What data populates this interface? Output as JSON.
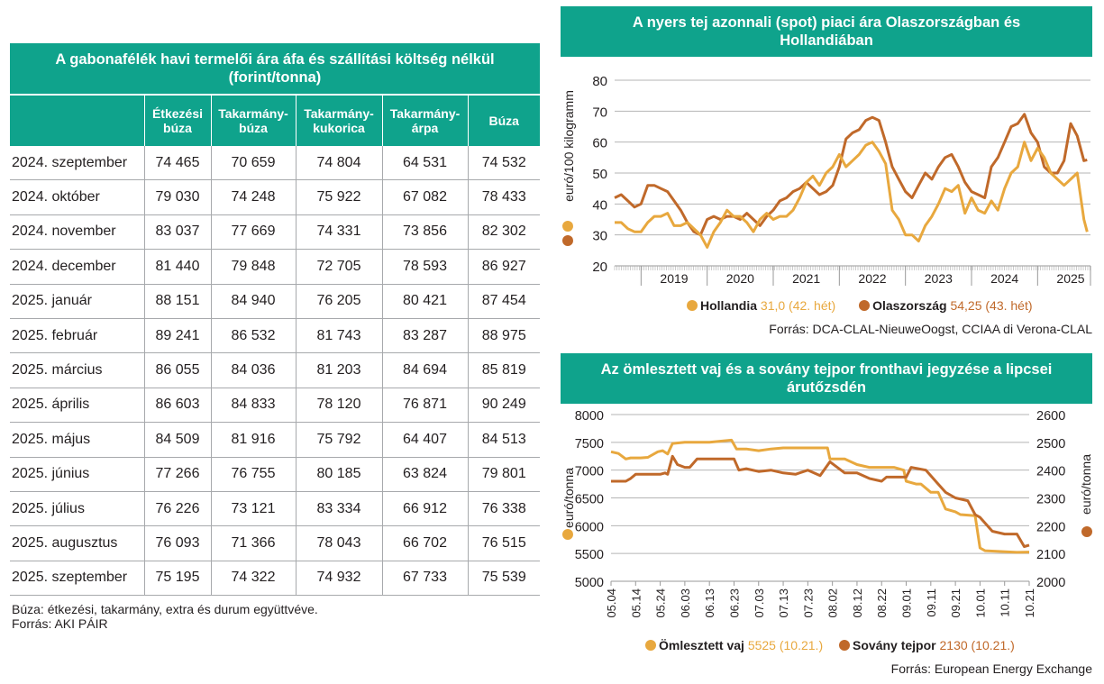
{
  "table": {
    "title": "A gabonafélék havi termelői ára áfa és szállítási költség nélkül (forint/tonna)",
    "headers": [
      "",
      "Étkezési búza",
      "Takarmány-búza",
      "Takarmány-kukorica",
      "Takarmány-árpa",
      "Búza"
    ],
    "rows": [
      [
        "2024. szeptember",
        "74 465",
        "70 659",
        "74 804",
        "64 531",
        "74 532"
      ],
      [
        "2024. október",
        "79 030",
        "74 248",
        "75 922",
        "67 082",
        "78 433"
      ],
      [
        "2024. november",
        "83 037",
        "77 669",
        "74 331",
        "73 856",
        "82 302"
      ],
      [
        "2024. december",
        "81 440",
        "79 848",
        "72 705",
        "78 593",
        "86 927"
      ],
      [
        "2025. január",
        "88 151",
        "84 940",
        "76 205",
        "80 421",
        "87 454"
      ],
      [
        "2025. február",
        "89 241",
        "86 532",
        "81 743",
        "83 287",
        "88 975"
      ],
      [
        "2025. március",
        "86 055",
        "84 036",
        "81 203",
        "84 694",
        "85 819"
      ],
      [
        "2025. április",
        "86 603",
        "84 833",
        "78 120",
        "76 871",
        "90 249"
      ],
      [
        "2025. május",
        "84 509",
        "81 916",
        "75 792",
        "64 407",
        "84 513"
      ],
      [
        "2025. június",
        "77 266",
        "76 755",
        "80 185",
        "63 824",
        "79 801"
      ],
      [
        "2025. július",
        "76 226",
        "73 121",
        "83 334",
        "66 912",
        "76 338"
      ],
      [
        "2025. augusztus",
        "76 093",
        "71 366",
        "78 043",
        "66 702",
        "76 515"
      ],
      [
        "2025. szeptember",
        "75 195",
        "74 322",
        "74 932",
        "67 733",
        "75 539"
      ]
    ],
    "note": "Búza: étkezési, takarmány, extra és durum együttvéve.",
    "source": "Forrás: AKI PÁIR"
  },
  "colors": {
    "teal": "#0fa38c",
    "light_orange": "#e8a83e",
    "dark_orange": "#c0692a",
    "grid": "#b5b5b5"
  },
  "chart_data": [
    {
      "type": "line",
      "title": "A nyers tej azonnali (spot) piaci ára Olaszországban és Hollandiában",
      "ylabel": "euró/100 kilogramm",
      "ylim": [
        20,
        80
      ],
      "yticks": [
        20,
        30,
        40,
        50,
        60,
        70,
        80
      ],
      "xlim": [
        2018.6,
        2025.8
      ],
      "xtick_labels": [
        "2019",
        "2020",
        "2021",
        "2022",
        "2023",
        "2024",
        "2025"
      ],
      "grid": true,
      "legend": "bottom",
      "series": [
        {
          "name": "Hollandia",
          "value_label": "31,0 (42. hét)",
          "color": "#e8a83e",
          "x": [
            2018.6,
            2018.7,
            2018.8,
            2018.9,
            2019.0,
            2019.1,
            2019.2,
            2019.3,
            2019.4,
            2019.5,
            2019.6,
            2019.7,
            2019.8,
            2019.9,
            2020.0,
            2020.1,
            2020.2,
            2020.3,
            2020.4,
            2020.5,
            2020.6,
            2020.7,
            2020.8,
            2020.9,
            2021.0,
            2021.1,
            2021.2,
            2021.3,
            2021.4,
            2021.5,
            2021.6,
            2021.7,
            2021.8,
            2021.9,
            2022.0,
            2022.1,
            2022.2,
            2022.3,
            2022.4,
            2022.5,
            2022.6,
            2022.7,
            2022.8,
            2022.9,
            2023.0,
            2023.1,
            2023.2,
            2023.3,
            2023.4,
            2023.5,
            2023.6,
            2023.7,
            2023.8,
            2023.9,
            2024.0,
            2024.1,
            2024.2,
            2024.3,
            2024.4,
            2024.5,
            2024.6,
            2024.7,
            2024.8,
            2024.9,
            2025.0,
            2025.1,
            2025.2,
            2025.3,
            2025.4,
            2025.5,
            2025.6,
            2025.7,
            2025.75
          ],
          "values": [
            34,
            34,
            32,
            31,
            31,
            34,
            36,
            36,
            37,
            33,
            33,
            34,
            32,
            30,
            26,
            31,
            34,
            38,
            36,
            36,
            34,
            31,
            35,
            37,
            35,
            36,
            36,
            38,
            42,
            47,
            49,
            46,
            50,
            52,
            56,
            52,
            54,
            56,
            59,
            60,
            57,
            53,
            38,
            35,
            30,
            30,
            28,
            33,
            36,
            40,
            45,
            44,
            46,
            37,
            42,
            38,
            37,
            41,
            38,
            45,
            50,
            52,
            60,
            54,
            58,
            55,
            50,
            48,
            46,
            48,
            50,
            35,
            31
          ]
        },
        {
          "name": "Olaszország",
          "value_label": "54,25 (43. hét)",
          "color": "#c0692a",
          "x": [
            2018.6,
            2018.7,
            2018.8,
            2018.9,
            2019.0,
            2019.1,
            2019.2,
            2019.3,
            2019.4,
            2019.5,
            2019.6,
            2019.7,
            2019.8,
            2019.9,
            2020.0,
            2020.1,
            2020.2,
            2020.3,
            2020.4,
            2020.5,
            2020.6,
            2020.7,
            2020.8,
            2020.9,
            2021.0,
            2021.1,
            2021.2,
            2021.3,
            2021.4,
            2021.5,
            2021.6,
            2021.7,
            2021.8,
            2021.9,
            2022.0,
            2022.1,
            2022.2,
            2022.3,
            2022.4,
            2022.5,
            2022.6,
            2022.7,
            2022.8,
            2022.9,
            2023.0,
            2023.1,
            2023.2,
            2023.3,
            2023.4,
            2023.5,
            2023.6,
            2023.7,
            2023.8,
            2023.9,
            2024.0,
            2024.1,
            2024.2,
            2024.3,
            2024.4,
            2024.5,
            2024.6,
            2024.7,
            2024.8,
            2024.9,
            2025.0,
            2025.1,
            2025.2,
            2025.3,
            2025.4,
            2025.5,
            2025.6,
            2025.7,
            2025.75
          ],
          "values": [
            42,
            43,
            41,
            39,
            40,
            46,
            46,
            45,
            44,
            41,
            38,
            34,
            31,
            30,
            35,
            36,
            35,
            36,
            36,
            35,
            37,
            35,
            33,
            36,
            38,
            41,
            42,
            44,
            45,
            47,
            45,
            43,
            44,
            46,
            52,
            61,
            63,
            64,
            67,
            68,
            67,
            60,
            52,
            48,
            44,
            42,
            46,
            50,
            48,
            52,
            55,
            56,
            52,
            47,
            44,
            43,
            42,
            52,
            55,
            60,
            65,
            66,
            69,
            63,
            60,
            52,
            50,
            50,
            54,
            66,
            62,
            54,
            54.25
          ]
        }
      ],
      "source": "Forrás: DCA-CLAL-NieuweOogst, CCIAA di Verona-CLAL"
    },
    {
      "type": "line",
      "title": "Az ömlesztett vaj és a sovány tejpor fronthavi jegyzése a lipcsei árutőzsdén",
      "ylabel": "euró/tonna",
      "ylabel_right": "euró/tonna",
      "ylim": [
        5000,
        8000
      ],
      "yticks": [
        5000,
        5500,
        6000,
        6500,
        7000,
        7500,
        8000
      ],
      "ylim_right": [
        2000,
        2600
      ],
      "yticks_right": [
        2000,
        2100,
        2200,
        2300,
        2400,
        2500,
        2600
      ],
      "xtick_labels": [
        "05.04",
        "05.14",
        "05.24",
        "06.03",
        "06.13",
        "06.23",
        "07.03",
        "07.13",
        "07.23",
        "08.02",
        "08.12",
        "08.22",
        "09.01",
        "09.11",
        "09.21",
        "10.01",
        "10.11",
        "10.21"
      ],
      "grid": true,
      "legend": "bottom",
      "series": [
        {
          "name": "Ömlesztett vaj",
          "value_label": "5525 (10.21.)",
          "axis": "left",
          "color": "#e8a83e",
          "x": [
            0,
            3,
            6,
            8,
            12,
            15,
            19,
            21,
            23,
            25,
            30,
            40,
            49,
            51,
            55,
            60,
            65,
            70,
            80,
            88,
            89,
            95,
            100,
            105,
            110,
            115,
            119,
            120,
            124,
            126,
            130,
            133,
            136,
            140,
            142,
            148,
            150,
            152,
            165,
            170
          ],
          "values": [
            7330,
            7300,
            7200,
            7220,
            7220,
            7230,
            7330,
            7350,
            7290,
            7480,
            7500,
            7500,
            7540,
            7380,
            7380,
            7350,
            7380,
            7400,
            7400,
            7400,
            7200,
            7200,
            7100,
            7050,
            7050,
            7050,
            7000,
            6800,
            6750,
            6750,
            6600,
            6600,
            6300,
            6250,
            6200,
            6180,
            5600,
            5550,
            5520,
            5525
          ]
        },
        {
          "name": "Sovány tejpor",
          "value_label": "2130 (10.21.)",
          "axis": "right",
          "color": "#c0692a",
          "x": [
            0,
            6,
            8,
            10,
            20,
            22,
            23,
            25,
            27,
            30,
            32,
            35,
            50,
            52,
            55,
            60,
            65,
            70,
            75,
            80,
            85,
            89,
            95,
            100,
            105,
            110,
            112,
            115,
            120,
            122,
            128,
            133,
            136,
            140,
            145,
            148,
            150,
            155,
            160,
            165,
            168,
            170
          ],
          "values": [
            2360,
            2360,
            2370,
            2385,
            2385,
            2390,
            2385,
            2450,
            2420,
            2410,
            2410,
            2440,
            2440,
            2400,
            2405,
            2395,
            2400,
            2390,
            2385,
            2400,
            2380,
            2430,
            2390,
            2390,
            2370,
            2360,
            2375,
            2375,
            2375,
            2410,
            2400,
            2350,
            2320,
            2300,
            2290,
            2240,
            2230,
            2180,
            2170,
            2170,
            2125,
            2130
          ]
        }
      ],
      "source": "Forrás: European Energy Exchange"
    }
  ]
}
